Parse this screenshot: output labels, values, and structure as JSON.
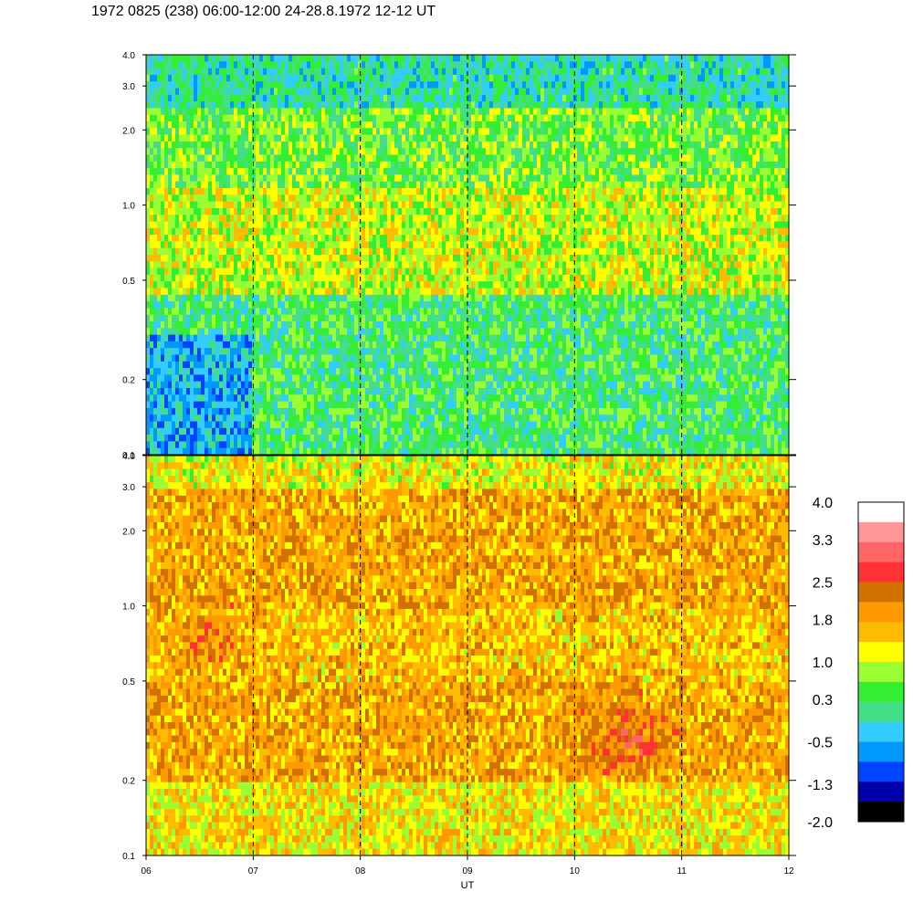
{
  "title": "1972 0825 (238) 06:00-12:00 24-28.8.1972  12-12 UT",
  "chart_data": [
    {
      "type": "heatmap",
      "panel": "top",
      "x_range": [
        6,
        12
      ],
      "y_scale": "log",
      "ylim": [
        0.1,
        4.0
      ],
      "y_ticks": [
        {
          "value": 0.1,
          "label": "0.1"
        },
        {
          "value": 0.2,
          "label": "0.2"
        },
        {
          "value": 0.5,
          "label": "0.5"
        },
        {
          "value": 1.0,
          "label": "1.0"
        },
        {
          "value": 2.0,
          "label": "2.0"
        },
        {
          "value": 3.0,
          "label": "3.0"
        },
        {
          "value": 4.0,
          "label": "4.0"
        }
      ],
      "dashed_hour_lines": [
        7,
        8,
        9,
        10,
        11
      ],
      "value_bands": [
        {
          "y_range": [
            0.1,
            0.3
          ],
          "x_range": [
            6,
            7
          ],
          "value": -0.5
        },
        {
          "y_range": [
            0.1,
            0.3
          ],
          "x_range": [
            7,
            12
          ],
          "value": 0.3
        },
        {
          "y_range": [
            0.3,
            0.45
          ],
          "x_range": [
            6,
            12
          ],
          "value": 0.3
        },
        {
          "y_range": [
            0.45,
            1.2
          ],
          "x_range": [
            6,
            12
          ],
          "value": 1.0
        },
        {
          "y_range": [
            1.2,
            2.5
          ],
          "x_range": [
            6,
            12
          ],
          "value": 0.6
        },
        {
          "y_range": [
            2.5,
            4.0
          ],
          "x_range": [
            6,
            12
          ],
          "value": 0.0
        }
      ]
    },
    {
      "type": "heatmap",
      "panel": "bottom",
      "x_range": [
        6,
        12
      ],
      "y_scale": "log",
      "ylim": [
        0.1,
        4.0
      ],
      "y_ticks": [
        {
          "value": 0.1,
          "label": "0.1"
        },
        {
          "value": 0.2,
          "label": "0.2"
        },
        {
          "value": 0.5,
          "label": "0.5"
        },
        {
          "value": 1.0,
          "label": "1.0"
        },
        {
          "value": 2.0,
          "label": "2.0"
        },
        {
          "value": 3.0,
          "label": "3.0"
        },
        {
          "value": 4.0,
          "label": "4.0"
        }
      ],
      "x_ticks": [
        {
          "value": 6,
          "label": "06"
        },
        {
          "value": 7,
          "label": "07"
        },
        {
          "value": 8,
          "label": "08"
        },
        {
          "value": 9,
          "label": "09"
        },
        {
          "value": 10,
          "label": "10"
        },
        {
          "value": 11,
          "label": "11"
        },
        {
          "value": 12,
          "label": "12"
        }
      ],
      "xlabel": "UT",
      "dashed_hour_lines": [
        7,
        8,
        9,
        10,
        11
      ],
      "value_bands": [
        {
          "y_range": [
            0.1,
            0.2
          ],
          "x_range": [
            6,
            12
          ],
          "value": 1.3
        },
        {
          "y_range": [
            0.2,
            0.5
          ],
          "x_range": [
            6,
            12
          ],
          "value": 1.8
        },
        {
          "y_range": [
            0.5,
            1.0
          ],
          "x_range": [
            6,
            12
          ],
          "value": 1.6
        },
        {
          "y_range": [
            1.0,
            3.0
          ],
          "x_range": [
            6,
            12
          ],
          "value": 1.8
        },
        {
          "y_range": [
            3.0,
            4.0
          ],
          "x_range": [
            6,
            12
          ],
          "value": 1.2
        }
      ],
      "hotspots": [
        {
          "x": 10.5,
          "y": 0.3,
          "value": 2.5
        },
        {
          "x": 6.6,
          "y": 0.75,
          "value": 2.2
        }
      ]
    }
  ],
  "colorbar": {
    "colors": [
      "#ffffff",
      "#ff9999",
      "#ff6666",
      "#ff3333",
      "#d27000",
      "#ff9900",
      "#ffbb00",
      "#ffff00",
      "#99ff33",
      "#33ee33",
      "#44dd88",
      "#33ccff",
      "#0099ff",
      "#0044ff",
      "#0000aa",
      "#000000"
    ],
    "labels": [
      "4.0",
      "3.3",
      "2.5",
      "1.8",
      "1.0",
      "0.3",
      "-0.5",
      "-1.3",
      "-2.0"
    ]
  }
}
